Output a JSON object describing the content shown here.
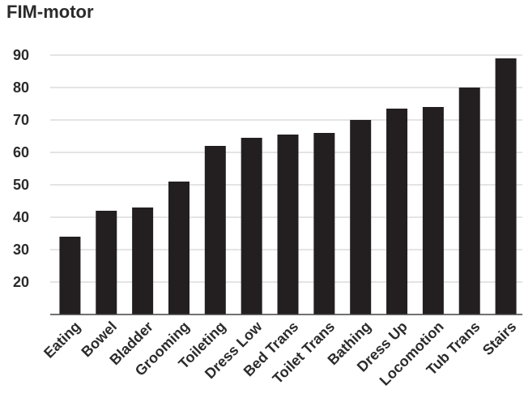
{
  "chart_data": {
    "type": "bar",
    "title": "FIM-motor",
    "xlabel": "",
    "ylabel": "",
    "categories": [
      "Eating",
      "Bowel",
      "Bladder",
      "Grooming",
      "Toileting",
      "Dress Low",
      "Bed Trans",
      "Toilet Trans",
      "Bathing",
      "Dress Up",
      "Locomotion",
      "Tub Trans",
      "Stairs"
    ],
    "values": [
      34,
      42,
      43,
      51,
      62,
      64.5,
      65.5,
      66,
      70,
      73.5,
      74,
      80,
      89
    ],
    "yticks": [
      20,
      30,
      40,
      50,
      60,
      70,
      80,
      90
    ],
    "ylim": [
      10,
      90
    ],
    "grid": true,
    "bar_color": "#231f20",
    "grid_color": "#c8c8c8"
  }
}
